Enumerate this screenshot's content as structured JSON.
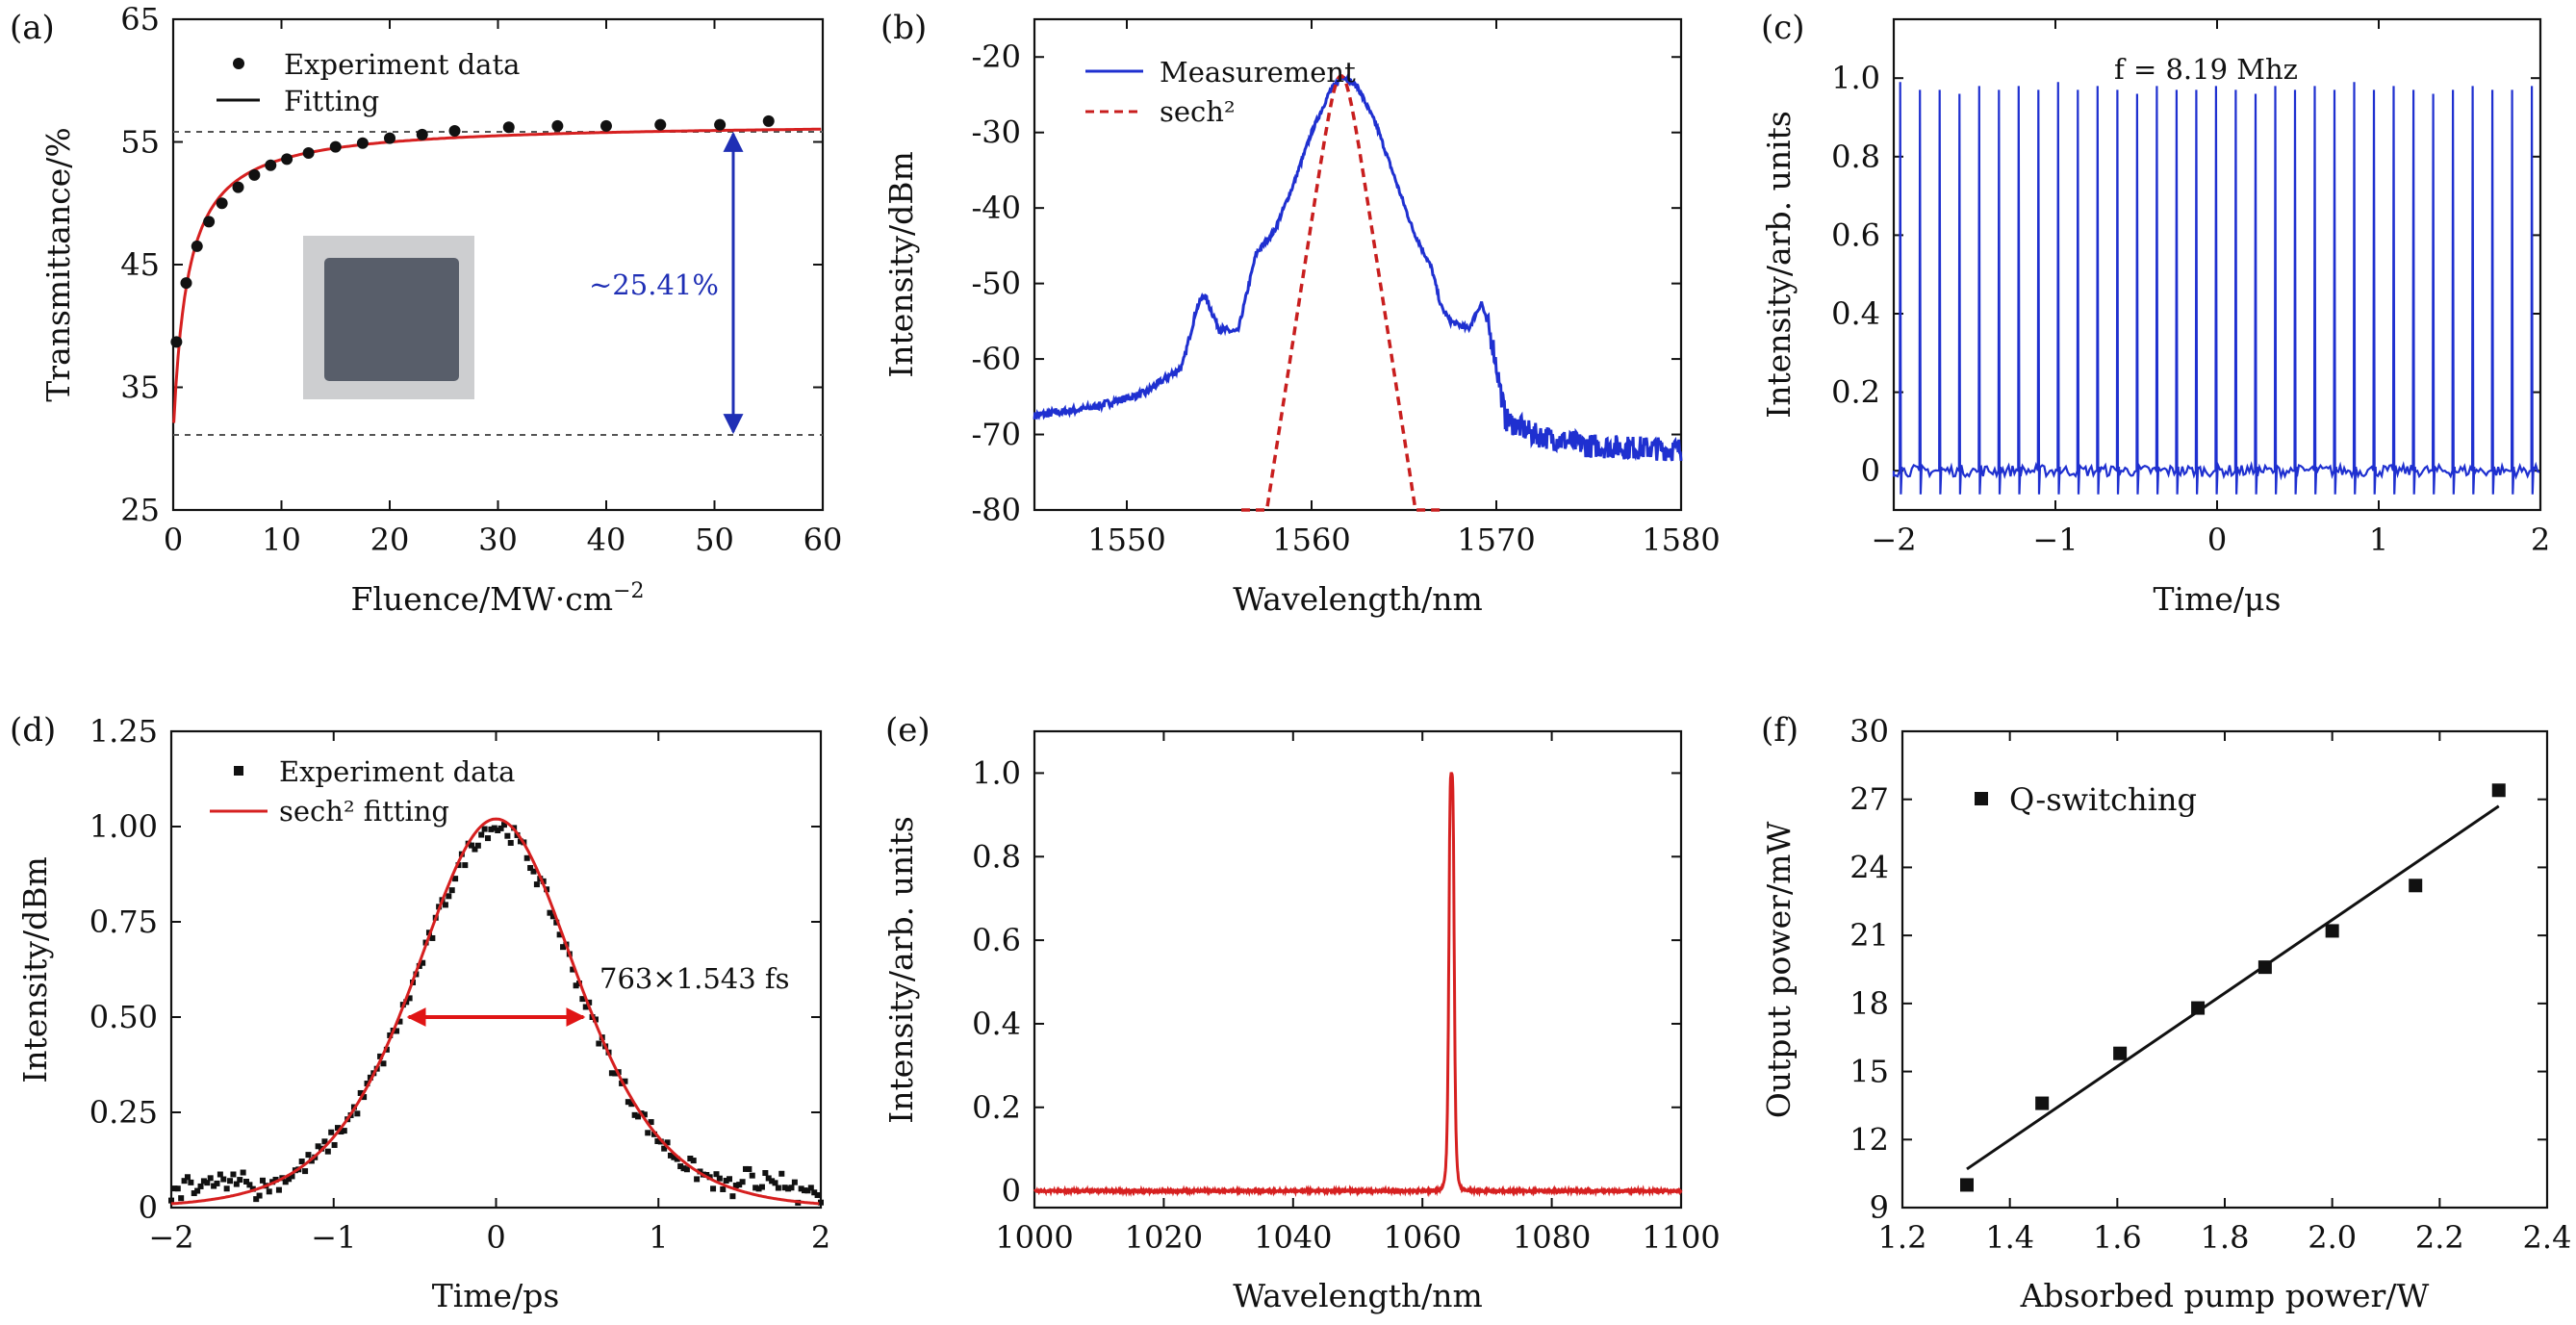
{
  "chart_data": [
    {
      "panel": "(a)",
      "type": "scatter",
      "xlabel": "Fluence/MW·cm",
      "xlabel_sup": "−2",
      "ylabel": "Transmittance/%",
      "xlim": [
        0,
        60
      ],
      "ylim": [
        25,
        65
      ],
      "xticks": [
        0,
        10,
        20,
        30,
        40,
        50,
        60
      ],
      "yticks": [
        25,
        35,
        45,
        55,
        65
      ],
      "legend": [
        "Experiment data",
        "Fitting"
      ],
      "annotation": "~25.41%",
      "levels": [
        56.5,
        31.2
      ],
      "series": [
        {
          "name": "Experiment data",
          "x": [
            0.3,
            1.2,
            2.2,
            3.3,
            4.5,
            6,
            7.5,
            9,
            10.5,
            12.5,
            15,
            17.5,
            20,
            23,
            26,
            31,
            35.5,
            40,
            45,
            50.5,
            55
          ],
          "y": [
            38.7,
            43.5,
            46.5,
            48.5,
            50,
            51.3,
            52.3,
            53.1,
            53.6,
            54.1,
            54.6,
            54.9,
            55.3,
            55.6,
            55.9,
            56.2,
            56.3,
            56.3,
            56.4,
            56.4,
            56.7
          ]
        },
        {
          "name": "Fitting",
          "model": "saturable",
          "A": 25.41,
          "Isat": 1.35,
          "Tns": 56.6
        }
      ],
      "colors": {
        "fit": "#d62020",
        "arrow": "#1f2fb5",
        "data": "#111111"
      }
    },
    {
      "panel": "(b)",
      "type": "line",
      "xlabel": "Wavelength/nm",
      "ylabel": "Intensity/dBm",
      "xlim": [
        1545,
        1580
      ],
      "ylim": [
        -80,
        -15
      ],
      "xticks": [
        1550,
        1560,
        1570,
        1580
      ],
      "yticks": [
        -80,
        -70,
        -60,
        -50,
        -40,
        -30,
        -20
      ],
      "legend": [
        "Measurement",
        "sech²"
      ],
      "series": [
        {
          "name": "Measurement",
          "x": [
            1545,
            1548,
            1551,
            1553,
            1553.8,
            1554.2,
            1555,
            1556,
            1557,
            1558,
            1559,
            1560,
            1561,
            1561.7,
            1562.5,
            1563.5,
            1564.5,
            1565.5,
            1566.5,
            1567,
            1567.5,
            1568.5,
            1569.2,
            1569.8,
            1570.5,
            1572,
            1575,
            1580
          ],
          "y": [
            -67.5,
            -66.5,
            -64.5,
            -61,
            -53,
            -51.5,
            -56,
            -56.5,
            -46,
            -43,
            -37,
            -30,
            -24.5,
            -22.5,
            -24,
            -29,
            -36,
            -43,
            -48,
            -53,
            -55,
            -56,
            -52.5,
            -58,
            -68,
            -70,
            -71.5,
            -72
          ]
        },
        {
          "name": "sech²",
          "center": 1561.6,
          "peak": -22.5,
          "width_nm": 0.55,
          "x_range": [
            1556.2,
            1567.2
          ]
        }
      ],
      "colors": {
        "measurement": "#1f30d0",
        "fit": "#c81e1e"
      }
    },
    {
      "panel": "(c)",
      "type": "line",
      "xlabel": "Time/μs",
      "ylabel": "Intensity/arb. units",
      "xlim": [
        -2,
        2
      ],
      "ylim": [
        -0.1,
        1.15
      ],
      "xticks": [
        -2,
        -1,
        0,
        1,
        2
      ],
      "xtick_labels": [
        "−2",
        "−1",
        "0",
        "1",
        "2"
      ],
      "yticks": [
        0,
        0.2,
        0.4,
        0.6,
        0.8,
        1.0
      ],
      "ytick_labels": [
        "0",
        "0.2",
        "0.4",
        "0.6",
        "0.8",
        "1.0"
      ],
      "annotation": "f = 8.19 Mhz",
      "pulse_period_us": 0.1221,
      "pulse_heights": [
        0.99,
        0.97,
        0.97,
        0.96,
        0.98,
        0.97,
        0.98,
        0.97,
        0.99,
        0.97,
        0.98,
        0.97,
        0.96,
        0.98,
        0.97,
        0.97,
        0.98,
        0.97,
        0.96,
        0.98,
        0.97,
        0.98,
        0.97,
        0.99,
        0.97,
        0.98,
        0.97,
        0.96,
        0.97,
        0.98,
        0.97,
        0.97,
        0.98
      ],
      "colors": {
        "line": "#1f30d0"
      }
    },
    {
      "panel": "(d)",
      "type": "line",
      "xlabel": "Time/ps",
      "ylabel": "Intensity/dBm",
      "xlim": [
        -2,
        2
      ],
      "ylim": [
        0,
        1.25
      ],
      "xticks": [
        -2,
        -1,
        0,
        1,
        2
      ],
      "xtick_labels": [
        "−2",
        "−1",
        "0",
        "1",
        "2"
      ],
      "yticks": [
        0,
        0.25,
        0.5,
        0.75,
        1.0,
        1.25
      ],
      "ytick_labels": [
        "0",
        "0.25",
        "0.50",
        "0.75",
        "1.00",
        "1.25"
      ],
      "legend": [
        "Experiment data",
        "sech² fitting"
      ],
      "annotation": "763×1.543 fs",
      "fwhm_ps": 1.177,
      "series": [
        {
          "name": "Experiment data",
          "model": "sech2",
          "peak": 1.0,
          "width_ps": 0.668,
          "noise": 0.025,
          "count": 200
        },
        {
          "name": "sech² fitting",
          "model": "sech2",
          "peak": 1.02,
          "width_ps": 0.668
        }
      ],
      "colors": {
        "fit": "#d62020",
        "arrow": "#e01515",
        "data": "#111111"
      }
    },
    {
      "panel": "(e)",
      "type": "line",
      "xlabel": "Wavelength/nm",
      "ylabel": "Intensity/arb. units",
      "xlim": [
        1000,
        1100
      ],
      "ylim": [
        -0.04,
        1.1
      ],
      "xticks": [
        1000,
        1020,
        1040,
        1060,
        1080,
        1100
      ],
      "yticks": [
        0,
        0.2,
        0.4,
        0.6,
        0.8,
        1.0
      ],
      "ytick_labels": [
        "0",
        "0.2",
        "0.4",
        "0.6",
        "0.8",
        "1.0"
      ],
      "series": [
        {
          "name": "Spectrum",
          "center": 1064.5,
          "peak": 1.0,
          "fwhm_nm": 0.9
        }
      ],
      "colors": {
        "line": "#d62020"
      }
    },
    {
      "panel": "(f)",
      "type": "scatter",
      "xlabel": "Absorbed pump power/W",
      "ylabel": "Output power/mW",
      "xlim": [
        1.2,
        2.4
      ],
      "ylim": [
        9,
        30
      ],
      "xticks": [
        1.2,
        1.4,
        1.6,
        1.8,
        2.0,
        2.2,
        2.4
      ],
      "xtick_labels": [
        "1.2",
        "1.4",
        "1.6",
        "1.8",
        "2.0",
        "2.2",
        "2.4"
      ],
      "yticks": [
        9,
        12,
        15,
        18,
        21,
        24,
        27,
        30
      ],
      "legend": [
        "Q-switching"
      ],
      "series": [
        {
          "name": "Q-switching",
          "x": [
            1.32,
            1.46,
            1.605,
            1.75,
            1.875,
            2.0,
            2.155,
            2.31
          ],
          "y": [
            10.0,
            13.6,
            15.8,
            17.8,
            19.6,
            21.2,
            23.2,
            27.4
          ]
        },
        {
          "name": "Linear fit",
          "x": [
            1.32,
            2.31
          ],
          "y": [
            10.7,
            26.7
          ]
        }
      ],
      "colors": {
        "data": "#111111",
        "fit": "#111111"
      }
    }
  ]
}
